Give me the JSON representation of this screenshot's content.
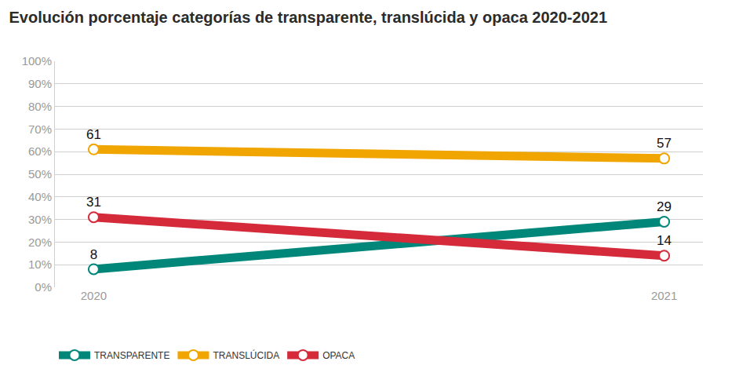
{
  "chart_data": {
    "type": "line",
    "title": "Evolución porcentaje categorías de transparente, translúcida y opaca 2020-2021",
    "categories": [
      "2020",
      "2021"
    ],
    "series": [
      {
        "name": "TRANSPARENTE",
        "color": "#00877a",
        "values": [
          8,
          29
        ]
      },
      {
        "name": "TRANSLÚCIDA",
        "color": "#f0a500",
        "values": [
          61,
          57
        ]
      },
      {
        "name": "OPACA",
        "color": "#d42a3a",
        "values": [
          31,
          14
        ]
      }
    ],
    "ylim": [
      0,
      100
    ],
    "yticks": [
      {
        "value": 0,
        "label": "0%"
      },
      {
        "value": 10,
        "label": "10%"
      },
      {
        "value": 20,
        "label": "20%"
      },
      {
        "value": 30,
        "label": "30%"
      },
      {
        "value": 40,
        "label": "40%"
      },
      {
        "value": 50,
        "label": "50%"
      },
      {
        "value": 60,
        "label": "60%"
      },
      {
        "value": 70,
        "label": "70%"
      },
      {
        "value": 80,
        "label": "80%"
      },
      {
        "value": 90,
        "label": "90%"
      },
      {
        "value": 100,
        "label": "100%"
      }
    ],
    "grid": true,
    "legend": "bottom",
    "data_labels": true,
    "marker": "circle"
  }
}
